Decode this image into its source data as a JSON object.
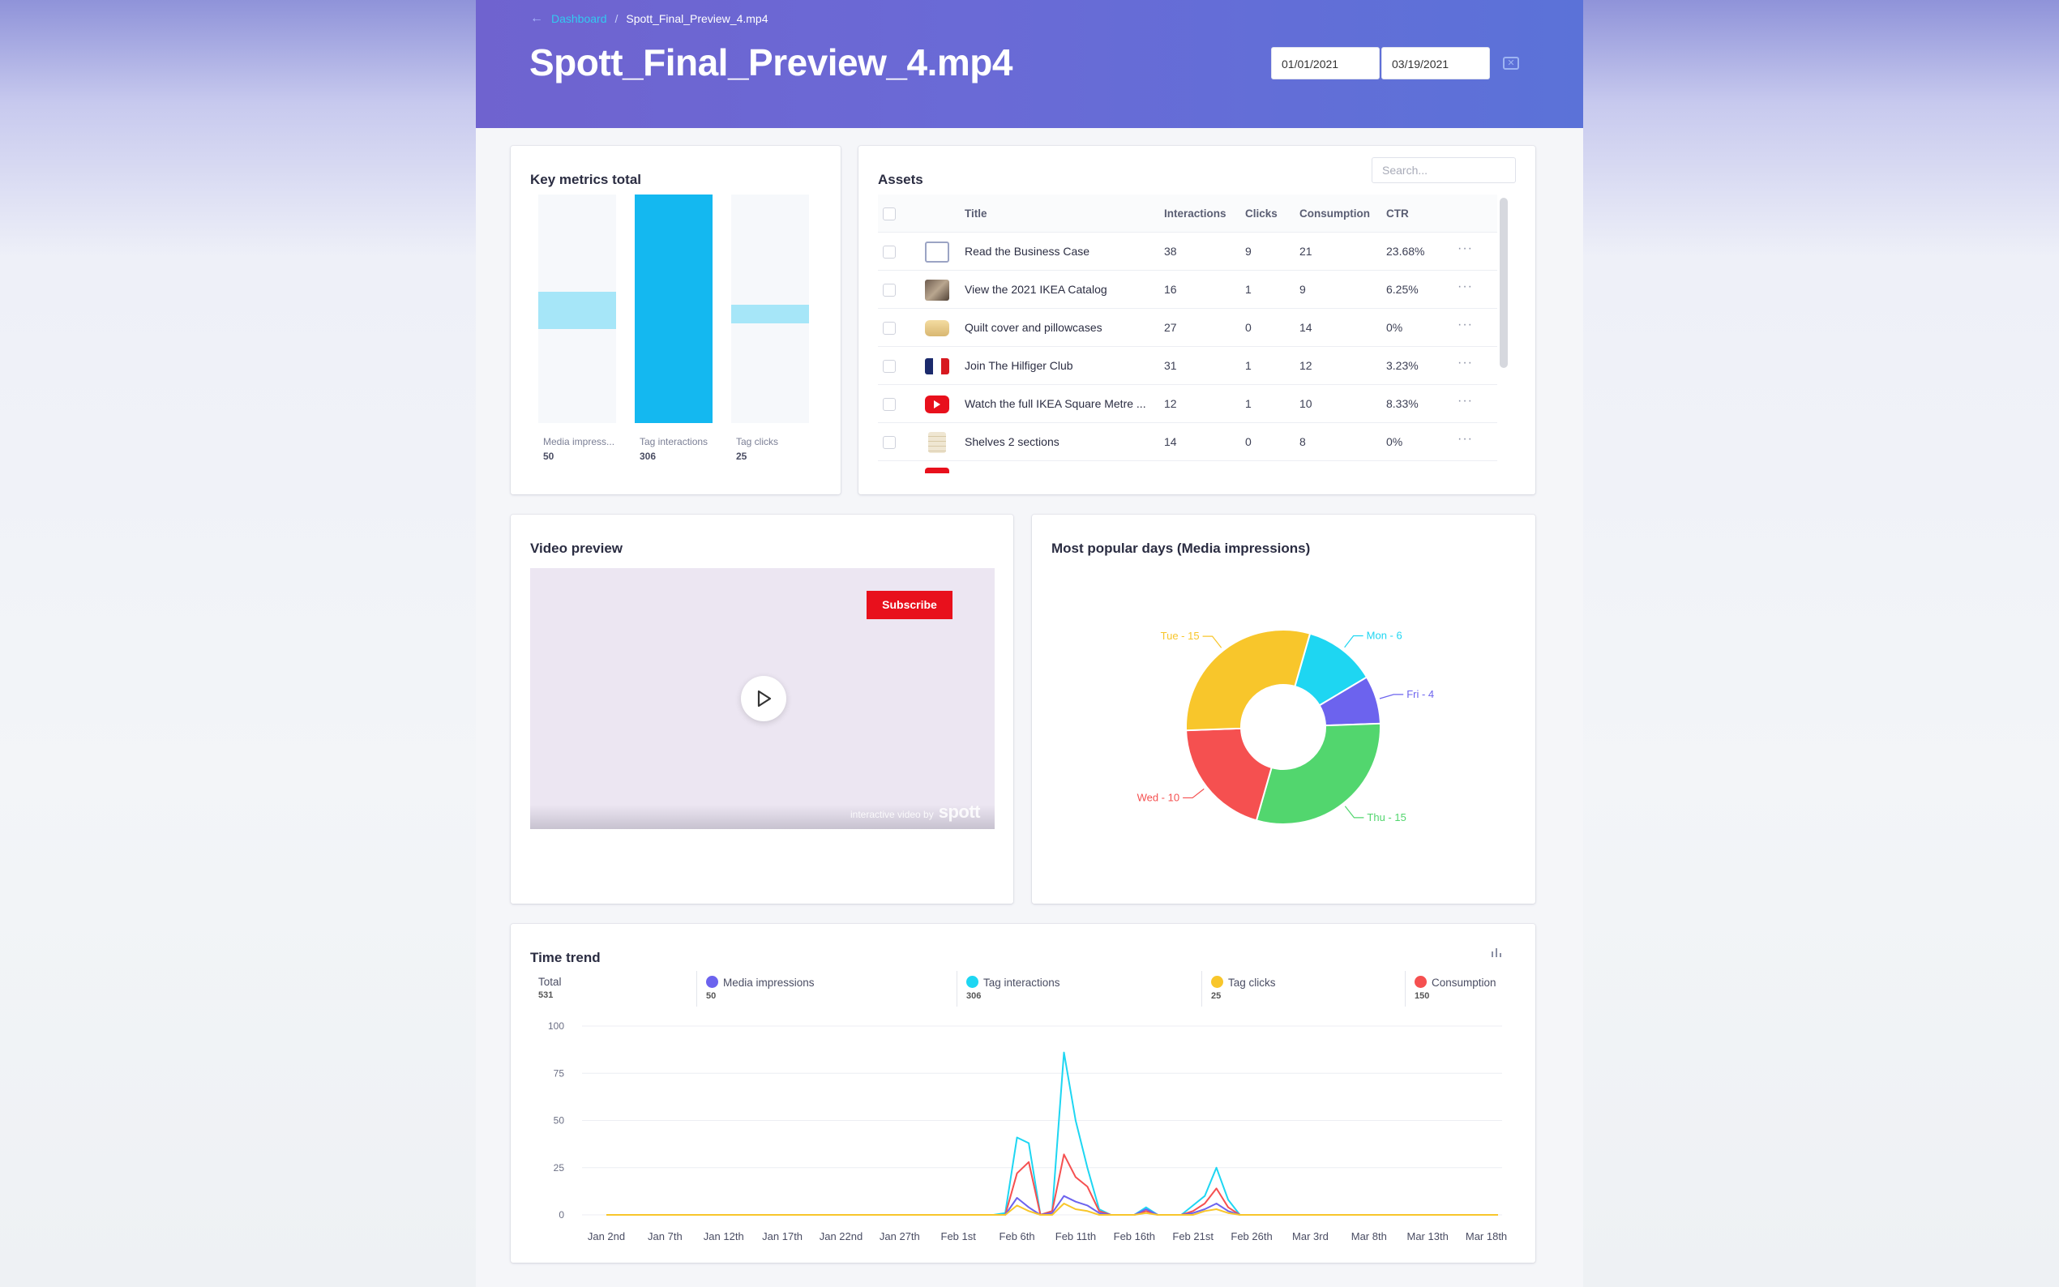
{
  "header": {
    "breadcrumb_root": "Dashboard",
    "breadcrumb_current": "Spott_Final_Preview_4.mp4",
    "title": "Spott_Final_Preview_4.mp4",
    "date_from": "01/01/2021",
    "date_to": "03/19/2021"
  },
  "key_metrics": {
    "title": "Key metrics total",
    "chart_data": {
      "type": "bar",
      "categories": [
        "Media impress...",
        "Tag interactions",
        "Tag clicks"
      ],
      "values": [
        50,
        306,
        25
      ],
      "colors": [
        "#a6e6f8",
        "#14b8f0",
        "#a6e6f8"
      ]
    }
  },
  "assets": {
    "title": "Assets",
    "search_placeholder": "Search...",
    "columns": [
      "Title",
      "Interactions",
      "Clicks",
      "Consumption",
      "CTR"
    ],
    "rows": [
      {
        "title": "Read the Business Case",
        "interactions": "38",
        "clicks": "9",
        "consumption": "21",
        "ctr": "23.68%",
        "thumb": "no-image-icon"
      },
      {
        "title": "View the 2021 IKEA Catalog",
        "interactions": "16",
        "clicks": "1",
        "consumption": "9",
        "ctr": "6.25%",
        "thumb": "catalog-thumbnail"
      },
      {
        "title": "Quilt cover and pillowcases",
        "interactions": "27",
        "clicks": "0",
        "consumption": "14",
        "ctr": "0%",
        "thumb": "pillow-thumbnail"
      },
      {
        "title": "Join The Hilfiger Club",
        "interactions": "31",
        "clicks": "1",
        "consumption": "12",
        "ctr": "3.23%",
        "thumb": "hilfiger-flag-icon"
      },
      {
        "title": "Watch the full IKEA Square Metre ...",
        "interactions": "12",
        "clicks": "1",
        "consumption": "10",
        "ctr": "8.33%",
        "thumb": "youtube-icon"
      },
      {
        "title": "Shelves 2 sections",
        "interactions": "14",
        "clicks": "0",
        "consumption": "8",
        "ctr": "0%",
        "thumb": "shelves-thumbnail"
      }
    ],
    "more_label": "···"
  },
  "video": {
    "title": "Video preview",
    "subscribe_label": "Subscribe",
    "brand_caption": "interactive video by",
    "brand_name": "spott"
  },
  "popular_days": {
    "title": "Most popular days (Media impressions)",
    "chart_data": {
      "type": "pie",
      "labels": [
        "Mon - 6",
        "Fri - 4",
        "Thu - 15",
        "Wed - 10",
        "Tue - 15"
      ],
      "categories": [
        "Mon",
        "Fri",
        "Thu",
        "Wed",
        "Tue"
      ],
      "values": [
        6,
        4,
        15,
        10,
        15
      ],
      "colors": [
        "#1ed6f2",
        "#6c63ee",
        "#52d66e",
        "#f55050",
        "#f8c62b"
      ]
    }
  },
  "time_trend": {
    "title": "Time trend",
    "legend": [
      {
        "label": "Total",
        "value": "531",
        "color": ""
      },
      {
        "label": "Media impressions",
        "value": "50",
        "color": "#6c63ee"
      },
      {
        "label": "Tag interactions",
        "value": "306",
        "color": "#1ed6f2"
      },
      {
        "label": "Tag clicks",
        "value": "25",
        "color": "#f8c62b"
      },
      {
        "label": "Consumption",
        "value": "150",
        "color": "#f55050"
      }
    ],
    "chart_data": {
      "type": "line",
      "x": [
        "Jan 2nd",
        "Jan 3rd",
        "Jan 4th",
        "Jan 5th",
        "Jan 6th",
        "Jan 7th",
        "Jan 8th",
        "Jan 9th",
        "Jan 10th",
        "Jan 11th",
        "Jan 12th",
        "Jan 13th",
        "Jan 14th",
        "Jan 15th",
        "Jan 16th",
        "Jan 17th",
        "Jan 18th",
        "Jan 19th",
        "Jan 20th",
        "Jan 21st",
        "Jan 22nd",
        "Jan 23rd",
        "Jan 24th",
        "Jan 25th",
        "Jan 26th",
        "Jan 27th",
        "Jan 28th",
        "Jan 29th",
        "Jan 30th",
        "Jan 31st",
        "Feb 1st",
        "Feb 2nd",
        "Feb 3rd",
        "Feb 4th",
        "Feb 5th",
        "Feb 6th",
        "Feb 7th",
        "Feb 8th",
        "Feb 9th",
        "Feb 10th",
        "Feb 11th",
        "Feb 12th",
        "Feb 13th",
        "Feb 14th",
        "Feb 15th",
        "Feb 16th",
        "Feb 17th",
        "Feb 18th",
        "Feb 19th",
        "Feb 20th",
        "Feb 21st",
        "Feb 22nd",
        "Feb 23rd",
        "Feb 24th",
        "Feb 25th",
        "Feb 26th",
        "Feb 27th",
        "Feb 28th",
        "Mar 1st",
        "Mar 2nd",
        "Mar 3rd",
        "Mar 4th",
        "Mar 5th",
        "Mar 6th",
        "Mar 7th",
        "Mar 8th",
        "Mar 9th",
        "Mar 10th",
        "Mar 11th",
        "Mar 12th",
        "Mar 13th",
        "Mar 14th",
        "Mar 15th",
        "Mar 16th",
        "Mar 17th",
        "Mar 18th",
        "Mar 19th"
      ],
      "x_ticks": [
        "Jan 2nd",
        "Jan 7th",
        "Jan 12th",
        "Jan 17th",
        "Jan 22nd",
        "Jan 27th",
        "Feb 1st",
        "Feb 6th",
        "Feb 11th",
        "Feb 16th",
        "Feb 21st",
        "Feb 26th",
        "Mar 3rd",
        "Mar 8th",
        "Mar 13th",
        "Mar 18th"
      ],
      "y_ticks": [
        0,
        25,
        50,
        75,
        100
      ],
      "ylim": [
        0,
        100
      ],
      "series": [
        {
          "name": "Tag interactions",
          "color": "#1ed6f2",
          "values": [
            0,
            0,
            0,
            0,
            0,
            0,
            0,
            0,
            0,
            0,
            0,
            0,
            0,
            0,
            0,
            0,
            0,
            0,
            0,
            0,
            0,
            0,
            0,
            0,
            0,
            0,
            0,
            0,
            0,
            0,
            0,
            0,
            0,
            0,
            1,
            41,
            38,
            0,
            2,
            86,
            50,
            25,
            3,
            0,
            0,
            0,
            4,
            0,
            0,
            0,
            5,
            10,
            25,
            8,
            0,
            0,
            0,
            0,
            0,
            0,
            0,
            0,
            0,
            0,
            0,
            0,
            0,
            0,
            0,
            0,
            0,
            0,
            0,
            0,
            0,
            0,
            0
          ]
        },
        {
          "name": "Consumption",
          "color": "#f55050",
          "values": [
            0,
            0,
            0,
            0,
            0,
            0,
            0,
            0,
            0,
            0,
            0,
            0,
            0,
            0,
            0,
            0,
            0,
            0,
            0,
            0,
            0,
            0,
            0,
            0,
            0,
            0,
            0,
            0,
            0,
            0,
            0,
            0,
            0,
            0,
            0,
            22,
            28,
            0,
            2,
            32,
            20,
            15,
            2,
            0,
            0,
            0,
            2,
            0,
            0,
            0,
            2,
            6,
            14,
            4,
            0,
            0,
            0,
            0,
            0,
            0,
            0,
            0,
            0,
            0,
            0,
            0,
            0,
            0,
            0,
            0,
            0,
            0,
            0,
            0,
            0,
            0,
            0
          ]
        },
        {
          "name": "Media impressions",
          "color": "#6c63ee",
          "values": [
            0,
            0,
            0,
            0,
            0,
            0,
            0,
            0,
            0,
            0,
            0,
            0,
            0,
            0,
            0,
            0,
            0,
            0,
            0,
            0,
            0,
            0,
            0,
            0,
            0,
            0,
            0,
            0,
            0,
            0,
            0,
            0,
            0,
            0,
            0,
            9,
            4,
            0,
            1,
            10,
            7,
            5,
            1,
            0,
            0,
            0,
            3,
            0,
            0,
            0,
            1,
            3,
            6,
            2,
            0,
            0,
            0,
            0,
            0,
            0,
            0,
            0,
            0,
            0,
            0,
            0,
            0,
            0,
            0,
            0,
            0,
            0,
            0,
            0,
            0,
            0,
            0
          ]
        },
        {
          "name": "Tag clicks",
          "color": "#f8c62b",
          "values": [
            0,
            0,
            0,
            0,
            0,
            0,
            0,
            0,
            0,
            0,
            0,
            0,
            0,
            0,
            0,
            0,
            0,
            0,
            0,
            0,
            0,
            0,
            0,
            0,
            0,
            0,
            0,
            0,
            0,
            0,
            0,
            0,
            0,
            0,
            0,
            5,
            2,
            0,
            0,
            6,
            3,
            2,
            0,
            0,
            0,
            0,
            1,
            0,
            0,
            0,
            0,
            2,
            3,
            1,
            0,
            0,
            0,
            0,
            0,
            0,
            0,
            0,
            0,
            0,
            0,
            0,
            0,
            0,
            0,
            0,
            0,
            0,
            0,
            0,
            0,
            0,
            0
          ]
        }
      ]
    }
  }
}
